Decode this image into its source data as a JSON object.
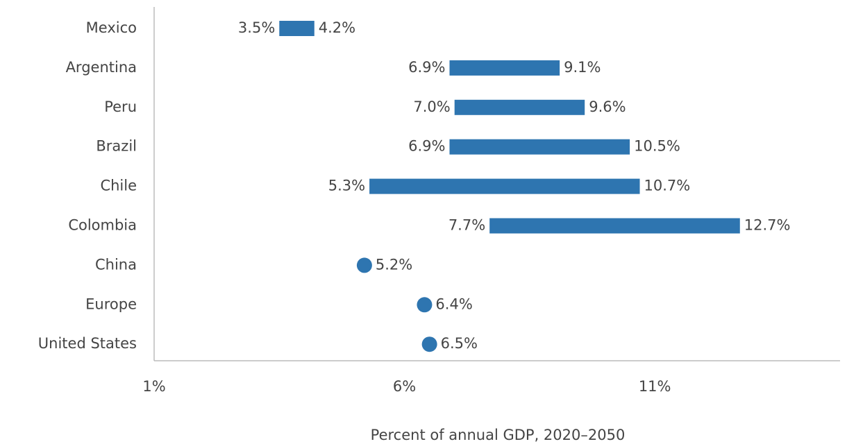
{
  "chart_data": {
    "type": "range",
    "categories": [
      "Mexico",
      "Argentina",
      "Peru",
      "Brazil",
      "Chile",
      "Colombia",
      "China",
      "Europe",
      "United States"
    ],
    "low": [
      3.5,
      6.9,
      7.0,
      6.9,
      5.3,
      7.7,
      null,
      null,
      null
    ],
    "low_labels": [
      "3.5%",
      "6.9%",
      "7.0%",
      "6.9%",
      "5.3%",
      "7.7%",
      null,
      null,
      null
    ],
    "high": [
      4.2,
      9.1,
      9.6,
      10.5,
      10.7,
      12.7,
      5.2,
      6.4,
      6.5
    ],
    "high_labels": [
      "4.2%",
      "9.1%",
      "9.6%",
      "10.5%",
      "10.7%",
      "12.7%",
      "5.2%",
      "6.4%",
      "6.5%"
    ],
    "color": "#2e75b0",
    "xlim": [
      1,
      14.7
    ],
    "xticks": [
      {
        "value": 1,
        "label": "1%"
      },
      {
        "value": 6,
        "label": "6%"
      },
      {
        "value": 11,
        "label": "11%"
      }
    ],
    "xlabel": "Percent of annual GDP, 2020–2050"
  }
}
